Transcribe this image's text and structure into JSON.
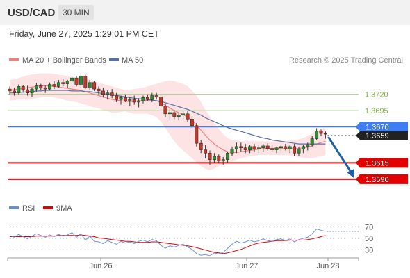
{
  "header": {
    "pair": "USD/CAD",
    "timeframe": "30 MIN"
  },
  "datetime": "Friday, June 27, 2025 1:29:01 PM CET",
  "legend": {
    "ma20": "MA 20 + Bollinger Bands",
    "ma50": "MA 50"
  },
  "research": "Research © 2025 Trading Central",
  "rsi_legend": {
    "rsi": "RSI",
    "ma": "9MA"
  },
  "colors": {
    "support": "#e30000",
    "resistance": "#7cb342",
    "pivot": "#3d7ef5",
    "ma20": "#f08080",
    "ma50": "#5a6fa8",
    "band": "#fde0e0",
    "arrow": "#1f5fa8",
    "rsi": "#6a8fdc"
  },
  "chart_data": [
    {
      "type": "candlestick",
      "xlabel": "",
      "ylabel": "",
      "x_ticks": [
        "Jun 26",
        "Jun 27",
        "Jun 28"
      ],
      "ylim": [
        1.3575,
        1.376
      ],
      "levels": [
        {
          "value": 1.372,
          "label": "1.3720",
          "kind": "resistance"
        },
        {
          "value": 1.3695,
          "label": "1.3695",
          "kind": "resistance"
        },
        {
          "value": 1.367,
          "label": "1.3670",
          "kind": "pivot"
        },
        {
          "value": 1.3615,
          "label": "1.3615",
          "kind": "support"
        },
        {
          "value": 1.359,
          "label": "1.3590",
          "kind": "support"
        }
      ],
      "last_price": {
        "value": 1.3659,
        "label": "1.3659"
      },
      "candles": [
        [
          1.3728,
          1.3732,
          1.372,
          1.3725
        ],
        [
          1.3725,
          1.373,
          1.3718,
          1.3722
        ],
        [
          1.3722,
          1.3735,
          1.372,
          1.3732
        ],
        [
          1.3732,
          1.3734,
          1.3724,
          1.3727
        ],
        [
          1.3727,
          1.3733,
          1.3718,
          1.3722
        ],
        [
          1.3722,
          1.373,
          1.3716,
          1.3728
        ],
        [
          1.3728,
          1.3737,
          1.3724,
          1.3733
        ],
        [
          1.3733,
          1.3736,
          1.3726,
          1.373
        ],
        [
          1.373,
          1.3733,
          1.3722,
          1.3728
        ],
        [
          1.3728,
          1.3738,
          1.3726,
          1.3735
        ],
        [
          1.3735,
          1.374,
          1.3728,
          1.3732
        ],
        [
          1.3732,
          1.3742,
          1.373,
          1.3738
        ],
        [
          1.3738,
          1.3744,
          1.3732,
          1.3736
        ],
        [
          1.3736,
          1.3742,
          1.373,
          1.374
        ],
        [
          1.374,
          1.3748,
          1.3738,
          1.3745
        ],
        [
          1.3745,
          1.3748,
          1.3732,
          1.3735
        ],
        [
          1.3735,
          1.3752,
          1.373,
          1.3748
        ],
        [
          1.3748,
          1.375,
          1.3728,
          1.373
        ],
        [
          1.373,
          1.3742,
          1.3726,
          1.3738
        ],
        [
          1.3738,
          1.374,
          1.3725,
          1.3728
        ],
        [
          1.3728,
          1.3732,
          1.372,
          1.3725
        ],
        [
          1.3725,
          1.373,
          1.3715,
          1.372
        ],
        [
          1.372,
          1.3726,
          1.3712,
          1.3722
        ],
        [
          1.3722,
          1.3728,
          1.3714,
          1.3718
        ],
        [
          1.3718,
          1.3722,
          1.3708,
          1.3712
        ],
        [
          1.3712,
          1.3718,
          1.3704,
          1.3715
        ],
        [
          1.3715,
          1.372,
          1.3708,
          1.371
        ],
        [
          1.371,
          1.3716,
          1.3702,
          1.3712
        ],
        [
          1.3712,
          1.3718,
          1.3704,
          1.3708
        ],
        [
          1.3708,
          1.3714,
          1.37,
          1.371
        ],
        [
          1.371,
          1.3718,
          1.3706,
          1.3715
        ],
        [
          1.3715,
          1.372,
          1.371,
          1.3712
        ],
        [
          1.3712,
          1.3722,
          1.3708,
          1.3718
        ],
        [
          1.3718,
          1.3722,
          1.3712,
          1.3716
        ],
        [
          1.3716,
          1.3718,
          1.37,
          1.3702
        ],
        [
          1.3702,
          1.3706,
          1.3685,
          1.369
        ],
        [
          1.369,
          1.3698,
          1.368,
          1.3692
        ],
        [
          1.3692,
          1.3696,
          1.3682,
          1.3686
        ],
        [
          1.3686,
          1.3692,
          1.368,
          1.3688
        ],
        [
          1.3688,
          1.3694,
          1.3682,
          1.369
        ],
        [
          1.369,
          1.3694,
          1.3678,
          1.3682
        ],
        [
          1.3682,
          1.3686,
          1.3668,
          1.3672
        ],
        [
          1.3672,
          1.3676,
          1.364,
          1.3645
        ],
        [
          1.3645,
          1.365,
          1.363,
          1.3635
        ],
        [
          1.3635,
          1.3642,
          1.3622,
          1.363
        ],
        [
          1.363,
          1.3634,
          1.3612,
          1.362
        ],
        [
          1.362,
          1.363,
          1.3615,
          1.3625
        ],
        [
          1.3625,
          1.3628,
          1.3614,
          1.3618
        ],
        [
          1.3618,
          1.3624,
          1.3612,
          1.362
        ],
        [
          1.362,
          1.3632,
          1.3616,
          1.363
        ],
        [
          1.363,
          1.364,
          1.3626,
          1.3636
        ],
        [
          1.3636,
          1.3646,
          1.363,
          1.364
        ],
        [
          1.364,
          1.3646,
          1.3632,
          1.3638
        ],
        [
          1.3638,
          1.3644,
          1.363,
          1.3635
        ],
        [
          1.3635,
          1.3642,
          1.363,
          1.364
        ],
        [
          1.364,
          1.3644,
          1.3632,
          1.3636
        ],
        [
          1.3636,
          1.3642,
          1.363,
          1.3638
        ],
        [
          1.3638,
          1.3644,
          1.3632,
          1.3641
        ],
        [
          1.3641,
          1.3645,
          1.3634,
          1.3637
        ],
        [
          1.3637,
          1.3642,
          1.3632,
          1.3635
        ],
        [
          1.3635,
          1.364,
          1.363,
          1.3638
        ],
        [
          1.3638,
          1.3643,
          1.3633,
          1.364
        ],
        [
          1.364,
          1.3644,
          1.3634,
          1.3636
        ],
        [
          1.3636,
          1.3642,
          1.363,
          1.364
        ],
        [
          1.364,
          1.3644,
          1.3626,
          1.363
        ],
        [
          1.363,
          1.364,
          1.3626,
          1.3636
        ],
        [
          1.3636,
          1.3642,
          1.363,
          1.364
        ],
        [
          1.364,
          1.3646,
          1.3634,
          1.3643
        ],
        [
          1.3643,
          1.3656,
          1.364,
          1.3652
        ],
        [
          1.3652,
          1.3668,
          1.365,
          1.3664
        ],
        [
          1.3664,
          1.3666,
          1.3656,
          1.366
        ],
        [
          1.366,
          1.3663,
          1.3652,
          1.3659
        ]
      ],
      "ma20": [
        1.3726,
        1.3727,
        1.3728,
        1.3729,
        1.373,
        1.3731,
        1.3732,
        1.3733,
        1.3733,
        1.3733,
        1.3732,
        1.3731,
        1.373,
        1.3729,
        1.3728,
        1.3727,
        1.3726,
        1.3724,
        1.3722,
        1.372,
        1.3718,
        1.3716,
        1.3714,
        1.3712,
        1.3711,
        1.371,
        1.3709,
        1.3709,
        1.3709,
        1.371,
        1.371,
        1.3711,
        1.3711,
        1.371,
        1.3707,
        1.3703,
        1.3699,
        1.3695,
        1.3692,
        1.3689,
        1.3685,
        1.368,
        1.3673,
        1.3665,
        1.3657,
        1.365,
        1.3644,
        1.3639,
        1.3635,
        1.3632,
        1.3631,
        1.3631,
        1.3632,
        1.3633,
        1.3634,
        1.3635,
        1.3636,
        1.3637,
        1.3637,
        1.3637,
        1.3637,
        1.3637,
        1.3637,
        1.3637,
        1.3637,
        1.3637,
        1.3638,
        1.3639,
        1.3641,
        1.3644,
        1.3646,
        1.3648
      ],
      "ma50": [
        1.3722,
        1.3722,
        1.3723,
        1.3723,
        1.3724,
        1.3724,
        1.3725,
        1.3725,
        1.3726,
        1.3726,
        1.3726,
        1.3726,
        1.3726,
        1.3726,
        1.3725,
        1.3725,
        1.3725,
        1.3724,
        1.3724,
        1.3723,
        1.3722,
        1.3721,
        1.372,
        1.3719,
        1.3718,
        1.3717,
        1.3716,
        1.3715,
        1.3714,
        1.3713,
        1.3713,
        1.3712,
        1.3711,
        1.371,
        1.3709,
        1.3707,
        1.3705,
        1.3703,
        1.3701,
        1.3699,
        1.3697,
        1.3694,
        1.3691,
        1.3688,
        1.3684,
        1.3681,
        1.3678,
        1.3675,
        1.3672,
        1.3669,
        1.3667,
        1.3665,
        1.3663,
        1.3661,
        1.3659,
        1.3657,
        1.3655,
        1.3653,
        1.3652,
        1.365,
        1.3649,
        1.3648,
        1.3647,
        1.3646,
        1.3645,
        1.3644,
        1.3644,
        1.3644,
        1.3644,
        1.3644,
        1.3644,
        1.3644
      ],
      "bb_upper": [
        1.3742,
        1.3743,
        1.3745,
        1.3747,
        1.3749,
        1.375,
        1.3751,
        1.3752,
        1.3752,
        1.3752,
        1.3751,
        1.375,
        1.3749,
        1.3748,
        1.3746,
        1.3745,
        1.3745,
        1.3744,
        1.3742,
        1.374,
        1.3738,
        1.3736,
        1.3734,
        1.3732,
        1.373,
        1.3728,
        1.3726,
        1.3727,
        1.3728,
        1.3729,
        1.373,
        1.3732,
        1.3734,
        1.3736,
        1.3738,
        1.374,
        1.3741,
        1.374,
        1.3738,
        1.3736,
        1.3732,
        1.3726,
        1.3718,
        1.3708,
        1.3696,
        1.3686,
        1.3676,
        1.3667,
        1.3659,
        1.3653,
        1.365,
        1.3649,
        1.3648,
        1.3648,
        1.3648,
        1.3648,
        1.3648,
        1.3648,
        1.3648,
        1.3648,
        1.3648,
        1.3648,
        1.3648,
        1.3649,
        1.365,
        1.3651,
        1.3653,
        1.3656,
        1.366,
        1.3664,
        1.3667,
        1.3669
      ],
      "bb_lower": [
        1.371,
        1.3711,
        1.3712,
        1.3712,
        1.3712,
        1.3713,
        1.3714,
        1.3715,
        1.3716,
        1.3716,
        1.3715,
        1.3714,
        1.3712,
        1.371,
        1.3709,
        1.3708,
        1.3706,
        1.3704,
        1.3702,
        1.37,
        1.3698,
        1.3696,
        1.3694,
        1.3692,
        1.3692,
        1.3693,
        1.3694,
        1.3692,
        1.369,
        1.369,
        1.369,
        1.369,
        1.3688,
        1.3685,
        1.3678,
        1.3668,
        1.3658,
        1.3648,
        1.364,
        1.3634,
        1.3628,
        1.3622,
        1.3616,
        1.361,
        1.3606,
        1.3604,
        1.3606,
        1.361,
        1.3614,
        1.3616,
        1.3618,
        1.362,
        1.3622,
        1.3624,
        1.3625,
        1.3626,
        1.3627,
        1.3627,
        1.3627,
        1.3627,
        1.3627,
        1.3627,
        1.3627,
        1.3626,
        1.3625,
        1.3624,
        1.3623,
        1.3622,
        1.3622,
        1.3624,
        1.3625,
        1.3627
      ]
    },
    {
      "type": "line",
      "title": "",
      "ylim": [
        20,
        80
      ],
      "y_ticks": [
        70,
        50,
        30
      ],
      "series": [
        {
          "name": "RSI",
          "values": [
            55,
            52,
            57,
            53,
            49,
            54,
            58,
            55,
            52,
            56,
            53,
            57,
            54,
            56,
            60,
            52,
            58,
            47,
            54,
            45,
            44,
            41,
            46,
            43,
            40,
            45,
            42,
            44,
            41,
            45,
            47,
            44,
            48,
            46,
            38,
            33,
            37,
            35,
            38,
            40,
            35,
            31,
            24,
            21,
            22,
            20,
            25,
            23,
            26,
            33,
            40,
            45,
            42,
            44,
            47,
            44,
            46,
            49,
            46,
            45,
            48,
            49,
            46,
            49,
            44,
            48,
            50,
            52,
            58,
            66,
            64,
            62
          ]
        },
        {
          "name": "9MA",
          "values": [
            53,
            53,
            53,
            53,
            53,
            53,
            54,
            54,
            54,
            54,
            54,
            55,
            55,
            55,
            55,
            55,
            56,
            55,
            54,
            53,
            51,
            50,
            49,
            48,
            47,
            46,
            45,
            45,
            44,
            43,
            43,
            43,
            44,
            44,
            43,
            42,
            41,
            40,
            39,
            38,
            37,
            36,
            34,
            32,
            30,
            28,
            26,
            25,
            24,
            25,
            27,
            29,
            31,
            34,
            37,
            40,
            42,
            43,
            44,
            45,
            46,
            46,
            46,
            47,
            47,
            47,
            47,
            48,
            49,
            51,
            53,
            55
          ]
        }
      ],
      "x_ticks": [
        "Jun 26",
        "Jun 27",
        "Jun 28"
      ]
    }
  ]
}
